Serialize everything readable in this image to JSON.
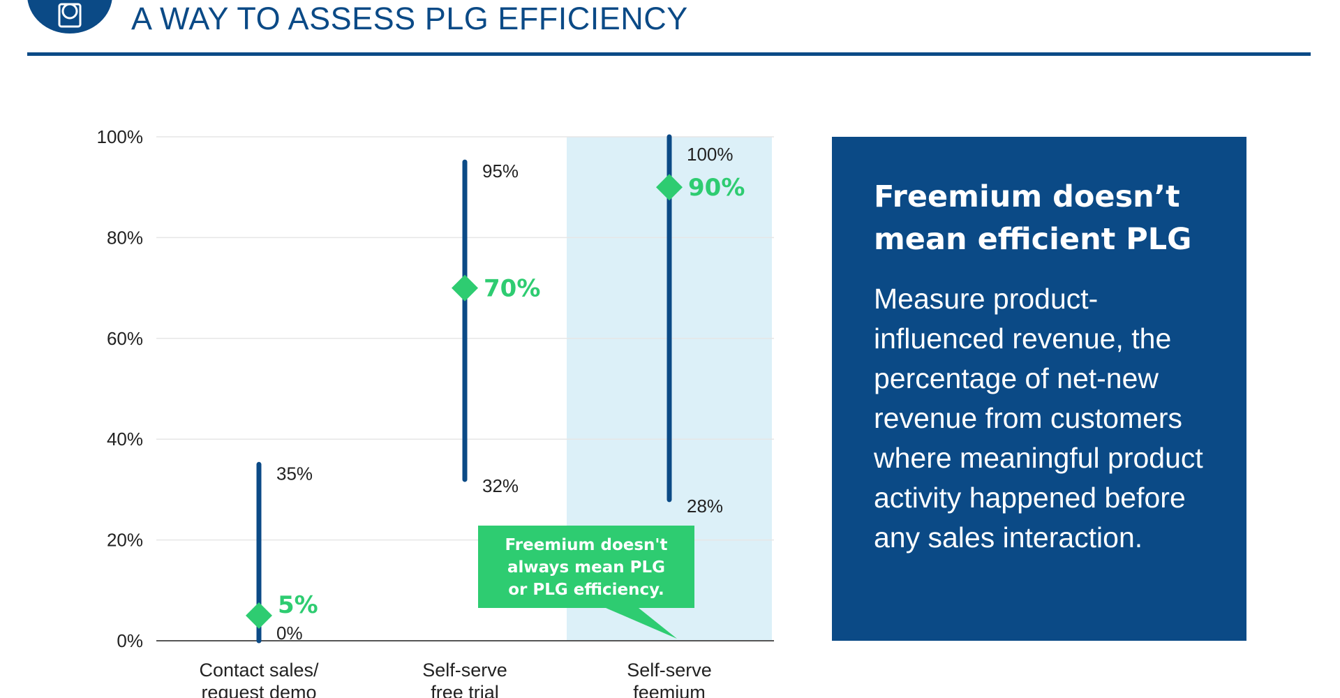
{
  "header": {
    "title": "A WAY TO ASSESS PLG EFFICIENCY",
    "icon": "dollar-document-icon"
  },
  "colors": {
    "brand_blue": "#0b4a86",
    "accent_green": "#2ecc71",
    "highlight_band": "#dcf0f8",
    "grid": "#e6e6e6"
  },
  "chart_data": {
    "type": "range",
    "ylim": [
      0,
      100
    ],
    "y_ticks": [
      0,
      20,
      40,
      60,
      80,
      100
    ],
    "y_tick_labels": [
      "0%",
      "20%",
      "40%",
      "60%",
      "80%",
      "100%"
    ],
    "grid": true,
    "categories": [
      {
        "label_lines": [
          "Contact sales/",
          "request demo"
        ],
        "low": 0,
        "high": 35,
        "median": 5,
        "low_label": "0%",
        "high_label": "35%",
        "median_label": "5%",
        "highlighted": false
      },
      {
        "label_lines": [
          "Self-serve",
          "free trial"
        ],
        "low": 32,
        "high": 95,
        "median": 70,
        "low_label": "32%",
        "high_label": "95%",
        "median_label": "70%",
        "highlighted": false
      },
      {
        "label_lines": [
          "Self-serve",
          "feemium"
        ],
        "low": 28,
        "high": 100,
        "median": 90,
        "low_label": "28%",
        "high_label": "100%",
        "median_label": "90%",
        "highlighted": true
      }
    ],
    "callout": {
      "lines": [
        "Freemium doesn't",
        "always mean PLG",
        "or PLG efficiency."
      ]
    }
  },
  "panel": {
    "heading": "Freemium doesn’t mean efficient PLG",
    "body": "Measure product-influenced revenue, the percentage of net-new revenue from customers where meaningful product activity happened before any sales interaction."
  }
}
